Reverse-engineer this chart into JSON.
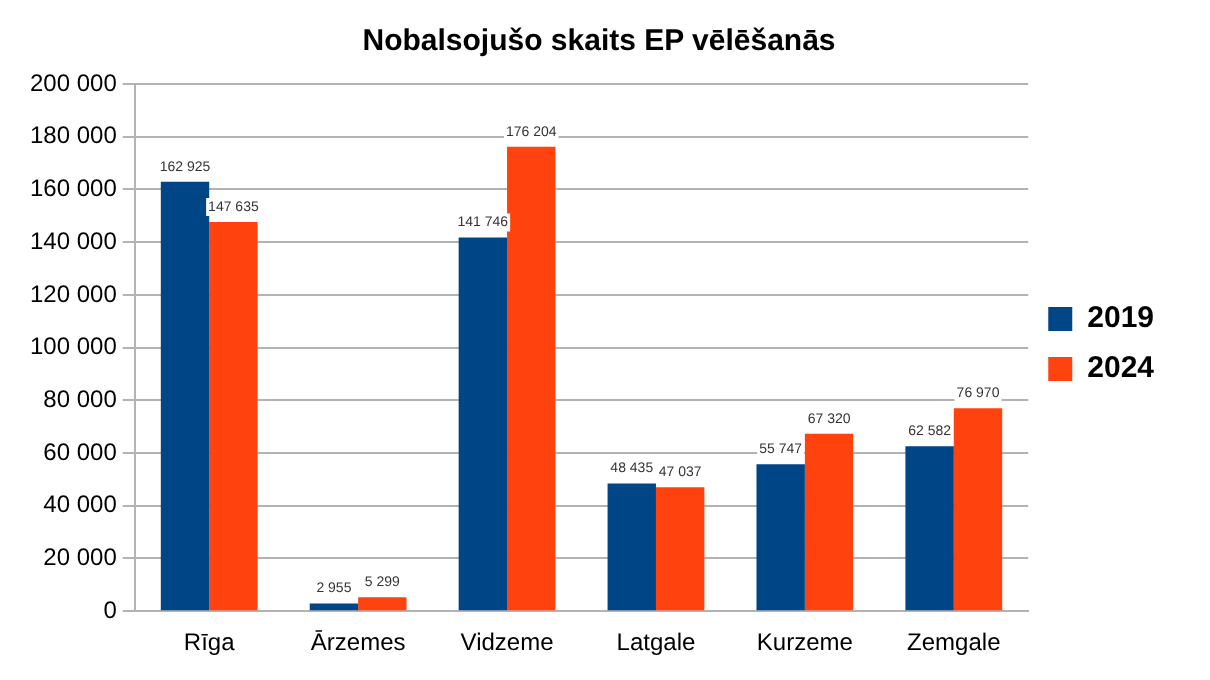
{
  "chart_data": {
    "type": "bar",
    "title": "Nobalsojušo skaits EP vēlēšanās",
    "categories": [
      "Rīga",
      "Ārzemes",
      "Vidzeme",
      "Latgale",
      "Kurzeme",
      "Zemgale"
    ],
    "series": [
      {
        "name": "2019",
        "color": "#004586",
        "values": [
          162925,
          2955,
          141746,
          48435,
          55747,
          62582
        ],
        "value_labels": [
          "162 925",
          "2 955",
          "141 746",
          "48 435",
          "55 747",
          "62 582"
        ]
      },
      {
        "name": "2024",
        "color": "#ff420e",
        "values": [
          147635,
          5299,
          176204,
          47037,
          67320,
          76970
        ],
        "value_labels": [
          "147 635",
          "5 299",
          "176 204",
          "47 037",
          "67 320",
          "76 970"
        ]
      }
    ],
    "ylim": [
      0,
      200000
    ],
    "yticks": [
      {
        "value": 0,
        "label": "0"
      },
      {
        "value": 20000,
        "label": "20 000"
      },
      {
        "value": 40000,
        "label": "40 000"
      },
      {
        "value": 60000,
        "label": "60 000"
      },
      {
        "value": 80000,
        "label": "80 000"
      },
      {
        "value": 100000,
        "label": "100 000"
      },
      {
        "value": 120000,
        "label": "120 000"
      },
      {
        "value": 140000,
        "label": "140 000"
      },
      {
        "value": 160000,
        "label": "160 000"
      },
      {
        "value": 180000,
        "label": "180 000"
      },
      {
        "value": 200000,
        "label": "200 000"
      }
    ],
    "grid": "y",
    "legend": "right"
  }
}
